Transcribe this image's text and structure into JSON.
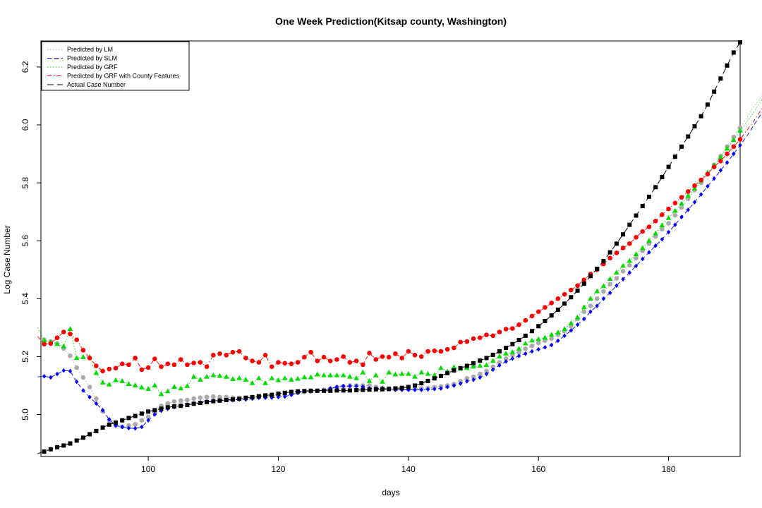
{
  "chart_data": {
    "type": "line",
    "title": "One Week Prediction(Kitsap county, Washington)",
    "xlabel": "days",
    "ylabel": "Log Case Number",
    "xlim": [
      83.5,
      191
    ],
    "ylim": [
      4.855,
      6.29
    ],
    "x_ticks": [
      100,
      120,
      140,
      160,
      180
    ],
    "y_ticks": [
      5.0,
      5.2,
      5.4,
      5.6,
      5.8,
      6.0,
      6.2
    ],
    "x_tick_labels": [
      "100",
      "120",
      "140",
      "160",
      "180"
    ],
    "y_tick_labels": [
      "5.0",
      "5.2",
      "5.4",
      "5.6",
      "5.8",
      "6.0",
      "6.2"
    ],
    "grid": false,
    "legend_position": "top-left",
    "x_start": 83,
    "series": [
      {
        "name": "Predicted by LM",
        "color": "#aaaaaa",
        "marker": "circle",
        "values": [
          5.258,
          5.258,
          5.252,
          5.245,
          5.228,
          5.203,
          5.162,
          5.128,
          5.095,
          5.055,
          5.011,
          4.98,
          4.962,
          4.958,
          4.962,
          4.966,
          4.98,
          4.992,
          5.008,
          5.03,
          5.038,
          5.045,
          5.048,
          5.05,
          5.055,
          5.058,
          5.06,
          5.062,
          5.06,
          5.06,
          5.058,
          5.055,
          5.055,
          5.057,
          5.06,
          5.062,
          5.064,
          5.066,
          5.068,
          5.07,
          5.075,
          5.078,
          5.08,
          5.082,
          5.085,
          5.089,
          5.095,
          5.098,
          5.1,
          5.1,
          5.1,
          5.1,
          5.095,
          5.092,
          5.09,
          5.088,
          5.088,
          5.088,
          5.089,
          5.09,
          5.091,
          5.094,
          5.097,
          5.1,
          5.105,
          5.115,
          5.125,
          5.13,
          5.14,
          5.15,
          5.165,
          5.18,
          5.193,
          5.205,
          5.215,
          5.227,
          5.237,
          5.247,
          5.255,
          5.262,
          5.275,
          5.288,
          5.305,
          5.33,
          5.355,
          5.375,
          5.4,
          5.425,
          5.45,
          5.47,
          5.495,
          5.515,
          5.54,
          5.565,
          5.59,
          5.615,
          5.64,
          5.66,
          5.688,
          5.715,
          5.745,
          5.775,
          5.8,
          5.83,
          5.862,
          5.892,
          5.925,
          5.958,
          5.99,
          6.025,
          6.06,
          6.09,
          6.12,
          6.165,
          6.215
        ]
      },
      {
        "name": "Predicted by SLM",
        "color": "#0000ff",
        "marker": "diamond",
        "values": [
          5.13,
          5.132,
          5.128,
          5.14,
          5.152,
          5.15,
          5.113,
          5.083,
          5.06,
          5.038,
          5.015,
          4.983,
          4.962,
          4.957,
          4.953,
          4.952,
          4.957,
          4.98,
          5.0,
          5.013,
          5.02,
          5.025,
          5.03,
          5.035,
          5.038,
          5.042,
          5.045,
          5.047,
          5.049,
          5.05,
          5.05,
          5.052,
          5.052,
          5.055,
          5.058,
          5.058,
          5.058,
          5.06,
          5.062,
          5.068,
          5.075,
          5.08,
          5.082,
          5.083,
          5.083,
          5.09,
          5.095,
          5.098,
          5.098,
          5.098,
          5.096,
          5.09,
          5.09,
          5.09,
          5.088,
          5.085,
          5.085,
          5.085,
          5.085,
          5.085,
          5.087,
          5.088,
          5.09,
          5.095,
          5.1,
          5.107,
          5.115,
          5.12,
          5.128,
          5.14,
          5.155,
          5.17,
          5.183,
          5.193,
          5.202,
          5.21,
          5.218,
          5.225,
          5.232,
          5.24,
          5.255,
          5.272,
          5.29,
          5.31,
          5.33,
          5.355,
          5.375,
          5.4,
          5.42,
          5.445,
          5.467,
          5.49,
          5.513,
          5.537,
          5.56,
          5.583,
          5.605,
          5.63,
          5.655,
          5.682,
          5.707,
          5.733,
          5.76,
          5.788,
          5.815,
          5.843,
          5.87,
          5.9,
          5.93,
          5.96,
          5.995,
          6.03,
          6.065,
          6.1,
          6.14,
          6.175
        ]
      },
      {
        "name": "Predicted by GRF",
        "color": "#00dd00",
        "marker": "triangle",
        "values": [
          5.3,
          5.255,
          5.25,
          5.243,
          5.235,
          5.295,
          5.195,
          5.198,
          5.198,
          5.143,
          5.11,
          5.103,
          5.118,
          5.115,
          5.105,
          5.1,
          5.093,
          5.088,
          5.1,
          5.07,
          5.08,
          5.095,
          5.09,
          5.098,
          5.13,
          5.12,
          5.13,
          5.135,
          5.133,
          5.13,
          5.122,
          5.125,
          5.12,
          5.108,
          5.125,
          5.108,
          5.125,
          5.118,
          5.125,
          5.12,
          5.123,
          5.128,
          5.128,
          5.138,
          5.135,
          5.135,
          5.135,
          5.135,
          5.13,
          5.125,
          5.145,
          5.115,
          5.135,
          5.113,
          5.145,
          5.138,
          5.14,
          5.14,
          5.13,
          5.145,
          5.14,
          5.135,
          5.16,
          5.148,
          5.163,
          5.158,
          5.16,
          5.165,
          5.168,
          5.17,
          5.185,
          5.2,
          5.21,
          5.215,
          5.227,
          5.245,
          5.255,
          5.26,
          5.265,
          5.275,
          5.283,
          5.295,
          5.315,
          5.335,
          5.37,
          5.4,
          5.425,
          5.443,
          5.468,
          5.49,
          5.513,
          5.53,
          5.553,
          5.575,
          5.6,
          5.625,
          5.653,
          5.678,
          5.703,
          5.728,
          5.755,
          5.78,
          5.808,
          5.835,
          5.86,
          5.888,
          5.918,
          5.948,
          5.98,
          6.01,
          6.04,
          6.075,
          6.11,
          6.15,
          6.2
        ]
      },
      {
        "name": "Predicted by GRF with County Features",
        "color": "#ff0000",
        "marker": "circle",
        "values": [
          5.27,
          5.243,
          5.245,
          5.265,
          5.285,
          5.278,
          5.258,
          5.222,
          5.195,
          5.168,
          5.15,
          5.157,
          5.16,
          5.175,
          5.172,
          5.195,
          5.155,
          5.162,
          5.192,
          5.165,
          5.175,
          5.172,
          5.19,
          5.172,
          5.178,
          5.18,
          5.165,
          5.205,
          5.21,
          5.205,
          5.215,
          5.218,
          5.195,
          5.185,
          5.18,
          5.205,
          5.165,
          5.18,
          5.177,
          5.175,
          5.18,
          5.198,
          5.215,
          5.185,
          5.198,
          5.185,
          5.19,
          5.2,
          5.18,
          5.185,
          5.172,
          5.212,
          5.19,
          5.2,
          5.198,
          5.21,
          5.195,
          5.218,
          5.205,
          5.2,
          5.218,
          5.22,
          5.218,
          5.225,
          5.23,
          5.25,
          5.252,
          5.262,
          5.265,
          5.275,
          5.272,
          5.285,
          5.295,
          5.297,
          5.31,
          5.325,
          5.34,
          5.355,
          5.37,
          5.385,
          5.4,
          5.415,
          5.43,
          5.445,
          5.465,
          5.485,
          5.5,
          5.52,
          5.54,
          5.558,
          5.575,
          5.59,
          5.612,
          5.632,
          5.648,
          5.668,
          5.69,
          5.71,
          5.73,
          5.75,
          5.77,
          5.79,
          5.81,
          5.83,
          5.855,
          5.875,
          5.9,
          5.925,
          5.95,
          5.98,
          6.01,
          6.045,
          6.075,
          6.135,
          6.175,
          6.205
        ]
      },
      {
        "name": "Actual Case Number",
        "color": "#000000",
        "marker": "square",
        "values": [
          4.865,
          4.872,
          4.88,
          4.887,
          4.893,
          4.9,
          4.91,
          4.92,
          4.932,
          4.943,
          4.955,
          4.965,
          4.972,
          4.98,
          4.988,
          4.995,
          5.003,
          5.01,
          5.015,
          5.02,
          5.025,
          5.028,
          5.03,
          5.033,
          5.037,
          5.04,
          5.043,
          5.046,
          5.048,
          5.05,
          5.052,
          5.055,
          5.058,
          5.06,
          5.063,
          5.066,
          5.068,
          5.072,
          5.075,
          5.078,
          5.08,
          5.081,
          5.082,
          5.082,
          5.082,
          5.082,
          5.083,
          5.083,
          5.083,
          5.084,
          5.085,
          5.086,
          5.087,
          5.087,
          5.088,
          5.09,
          5.092,
          5.095,
          5.1,
          5.108,
          5.116,
          5.125,
          5.133,
          5.143,
          5.152,
          5.16,
          5.168,
          5.177,
          5.186,
          5.195,
          5.206,
          5.218,
          5.23,
          5.243,
          5.257,
          5.272,
          5.288,
          5.305,
          5.323,
          5.342,
          5.362,
          5.383,
          5.405,
          5.428,
          5.452,
          5.478,
          5.503,
          5.53,
          5.56,
          5.59,
          5.622,
          5.655,
          5.687,
          5.72,
          5.752,
          5.785,
          5.82,
          5.855,
          5.89,
          5.925,
          5.96,
          5.995,
          6.03,
          6.07,
          6.115,
          6.16,
          6.205,
          6.25,
          6.285
        ]
      }
    ]
  }
}
